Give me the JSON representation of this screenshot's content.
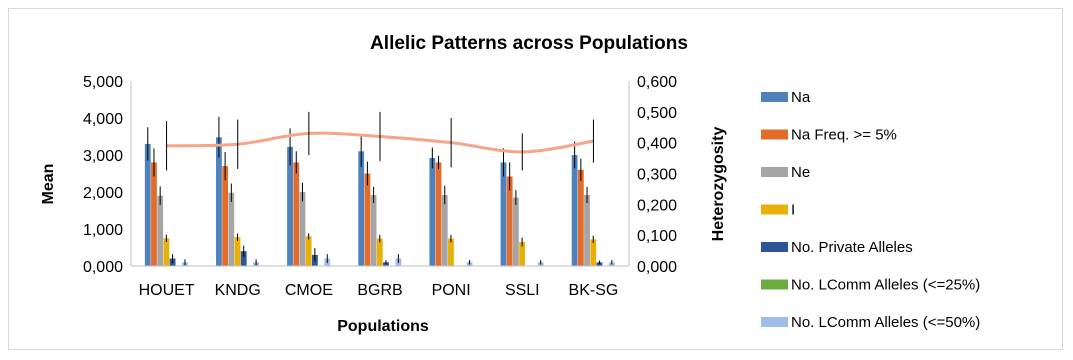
{
  "chart_data": {
    "type": "bar",
    "title": "Allelic Patterns across Populations",
    "xlabel": "Populations",
    "ylabel": "Mean",
    "y2label": "Heterozygosity",
    "categories": [
      "HOUET",
      "KNDG",
      "CMOE",
      "BGRB",
      "PONI",
      "SSLI",
      "BK-SG"
    ],
    "ylim": [
      0,
      5
    ],
    "y2lim": [
      0,
      0.6
    ],
    "yticks": [
      "0,000",
      "1,000",
      "2,000",
      "3,000",
      "4,000",
      "5,000"
    ],
    "y2ticks": [
      "0,000",
      "0,100",
      "0,200",
      "0,300",
      "0,400",
      "0,500",
      "0,600"
    ],
    "grid": false,
    "legend_position": "right",
    "series": [
      {
        "name": "Na",
        "color": "#4f81bd",
        "values": [
          3.3,
          3.48,
          3.22,
          3.1,
          2.92,
          2.8,
          3.0
        ],
        "errors": [
          0.45,
          0.55,
          0.5,
          0.42,
          0.28,
          0.38,
          0.36
        ]
      },
      {
        "name": "Na Freq. >= 5%",
        "color": "#e46c2a",
        "values": [
          2.8,
          2.7,
          2.8,
          2.5,
          2.8,
          2.42,
          2.6
        ],
        "errors": [
          0.38,
          0.38,
          0.3,
          0.32,
          0.18,
          0.38,
          0.3
        ]
      },
      {
        "name": "Ne",
        "color": "#a5a5a5",
        "values": [
          1.9,
          1.98,
          2.0,
          1.92,
          1.92,
          1.85,
          1.92
        ],
        "errors": [
          0.25,
          0.25,
          0.25,
          0.22,
          0.25,
          0.2,
          0.22
        ]
      },
      {
        "name": "I",
        "color": "#e8b008",
        "values": [
          0.75,
          0.78,
          0.8,
          0.74,
          0.74,
          0.65,
          0.72
        ],
        "errors": [
          0.1,
          0.1,
          0.08,
          0.1,
          0.1,
          0.12,
          0.1
        ]
      },
      {
        "name": "No. Private Alleles",
        "color": "#2e5597",
        "values": [
          0.2,
          0.4,
          0.3,
          0.1,
          0.0,
          0.0,
          0.1
        ],
        "errors": [
          0.12,
          0.15,
          0.18,
          0.06,
          0.0,
          0.0,
          0.05
        ]
      },
      {
        "name": "No. LComm Alleles (<=25%)",
        "color": "#6bac3f",
        "values": [
          0,
          0,
          0,
          0,
          0,
          0,
          0
        ],
        "errors": [
          0,
          0,
          0,
          0,
          0,
          0,
          0
        ]
      },
      {
        "name": "No. LComm Alleles (<=50%)",
        "color": "#9fbde6",
        "values": [
          0.1,
          0.1,
          0.2,
          0.2,
          0.1,
          0.1,
          0.1
        ],
        "errors": [
          0.08,
          0.08,
          0.12,
          0.12,
          0.06,
          0.06,
          0.06
        ]
      }
    ],
    "heterozygosity": {
      "color": "#f4a58a",
      "values": [
        0.39,
        0.395,
        0.43,
        0.42,
        0.4,
        0.37,
        0.405
      ],
      "errors": [
        0.08,
        0.08,
        0.07,
        0.08,
        0.08,
        0.06,
        0.07
      ]
    }
  }
}
